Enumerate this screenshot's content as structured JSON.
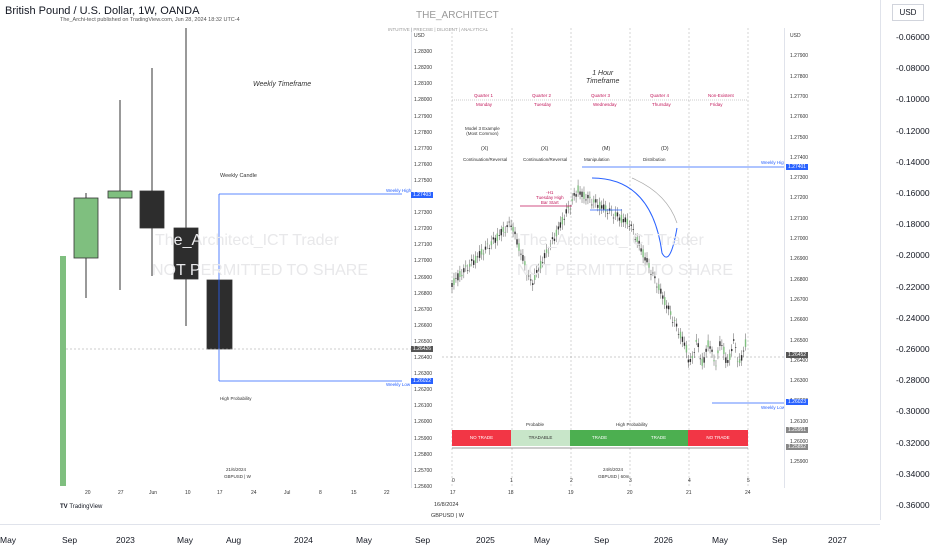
{
  "header": {
    "title": "British Pound / U.S. Dollar, 1W, OANDA",
    "subtitle": "The_Archi-tect published on TradingView.com, Jun 28, 2024 18:32 UTC-4",
    "currency": "USD"
  },
  "main_axis": {
    "ticks": [
      "-0.06000",
      "-0.08000",
      "-0.10000",
      "-0.12000",
      "-0.14000",
      "-0.16000",
      "-0.18000",
      "-0.20000",
      "-0.22000",
      "-0.24000",
      "-0.26000",
      "-0.28000",
      "-0.30000",
      "-0.32000",
      "-0.34000",
      "-0.36000"
    ]
  },
  "bottom_axis": {
    "ticks": [
      "May",
      "Sep",
      "2023",
      "May",
      "Aug",
      "2024",
      "May",
      "Sep",
      "2025",
      "May",
      "Sep",
      "2026",
      "May",
      "Sep",
      "2027"
    ]
  },
  "left_panel": {
    "title": "Weekly Timeframe",
    "candle_label": "Weekly Candle",
    "weekly_high_label": "Weekly High",
    "weekly_low_label": "Weekly Low",
    "probability_label": "High Probability",
    "watermark_1": "The_Architect_ICT Trader",
    "watermark_2": "NOT PERMITTED TO SHARE",
    "date_stamp": "21/6/2024",
    "symbol_stamp": "GBPUSD | W",
    "x_ticks": [
      "20",
      "27",
      "Jun",
      "10",
      "17",
      "24",
      "Jul",
      "8",
      "15",
      "22"
    ],
    "y_ticks": [
      "USD",
      "1.28300",
      "1.28200",
      "1.28100",
      "1.28000",
      "1.27900",
      "1.27800",
      "1.27700",
      "1.27600",
      "1.27500",
      "1.27400",
      "1.27300",
      "1.27200",
      "1.27100",
      "1.27000",
      "1.26900",
      "1.26800",
      "1.26700",
      "1.26600",
      "1.26500",
      "1.26400",
      "1.26300",
      "1.26200",
      "1.26100",
      "1.26000",
      "1.25900",
      "1.25800",
      "1.25700",
      "1.25600"
    ],
    "flag_high": "1.27403",
    "flag_current": "1.26426",
    "flag_low": "1.26022"
  },
  "right_panel": {
    "brand": "THE_ARCHITECT",
    "tagline": "INTUITIVE | PRECISE | DILIGENT | ANALYTICAL",
    "timeframe_title": "1 Hour\nTimeframe",
    "quarters": [
      {
        "name": "Quarter 1",
        "day": "Monday"
      },
      {
        "name": "Quarter 2",
        "day": "Tuesday"
      },
      {
        "name": "Quarter 3",
        "day": "Wednesday"
      },
      {
        "name": "Quarter 4",
        "day": "Thursday"
      },
      {
        "name": "Non-Existent",
        "day": "Friday"
      }
    ],
    "model_label": "Model 3 Example\n(Most Common)",
    "phases": [
      {
        "letter": "(X)",
        "name": "Continuation/Reversal"
      },
      {
        "letter": "(X)",
        "name": "Continuation/Reversal"
      },
      {
        "letter": "(M)",
        "name": "Manipulation"
      },
      {
        "letter": "(D)",
        "name": "Distribution"
      }
    ],
    "tuesday_note": "-H1\nTuesday High\nBar Start",
    "weekly_high_label": "Weekly High",
    "weekly_low_label": "Weekly Low",
    "watermark_1": "The_Architect_ICT Trader",
    "watermark_2": "NOT PERMITTED TO SHARE",
    "zone_top_labels": [
      "Probable",
      "High Probability"
    ],
    "zones": [
      "NO TRADE",
      "TRADABLE",
      "TRADE",
      "TRADE",
      "NO TRADE"
    ],
    "date_stamp": "24/6/2024",
    "symbol_stamp": "GBPUSD | 60m",
    "x_ticks": [
      "17",
      "18",
      "19",
      "20",
      "21",
      "24"
    ],
    "x_sub_ticks": [
      "0",
      "1",
      "2",
      "3",
      "4",
      "5"
    ],
    "y_ticks": [
      "USD",
      "1.27900",
      "1.27800",
      "1.27700",
      "1.27600",
      "1.27500",
      "1.27400",
      "1.27300",
      "1.27200",
      "1.27100",
      "1.27000",
      "1.26900",
      "1.26800",
      "1.26700",
      "1.26600",
      "1.26500",
      "1.26400",
      "1.26300",
      "1.26200",
      "1.26100",
      "1.26000",
      "1.25900"
    ],
    "flag_high": "1.27401",
    "flag_current": "1.26452",
    "flag_low": "1.26023",
    "flag_extra_1": "1.25951",
    "flag_extra_2": "1.25852"
  },
  "footer": {
    "date": "16/8/2024",
    "symbol": "GBPUSD | W",
    "logo": "TradingView"
  },
  "colors": {
    "bull": "#7fbf7f",
    "bear": "#2d2d2d",
    "line_blue": "#2962ff",
    "zone_red": "#f23645",
    "zone_light_green": "#c8e6c9",
    "zone_green": "#4caf50"
  }
}
